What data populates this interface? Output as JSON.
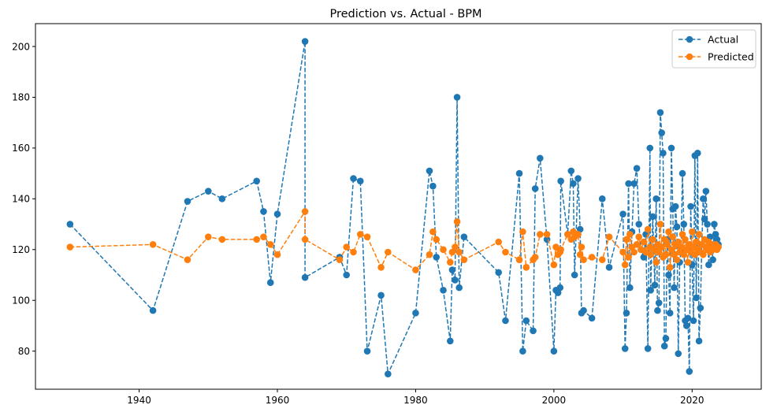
{
  "chart_data": {
    "type": "line",
    "title": "Prediction vs. Actual - BPM",
    "xlabel": "",
    "ylabel": "",
    "xlim": [
      1925,
      2030
    ],
    "ylim": [
      65,
      209
    ],
    "x_ticks": [
      1940,
      1960,
      1980,
      2000,
      2020
    ],
    "y_ticks": [
      80,
      100,
      120,
      140,
      160,
      180,
      200
    ],
    "grid": false,
    "legend_position": "top-right",
    "series": [
      {
        "name": "Actual",
        "color": "#1f77b4",
        "linestyle": "dashed",
        "marker": "circle",
        "points": [
          [
            1930,
            130
          ],
          [
            1942,
            96
          ],
          [
            1947,
            139
          ],
          [
            1950,
            143
          ],
          [
            1952,
            140
          ],
          [
            1957,
            147
          ],
          [
            1958,
            135
          ],
          [
            1959,
            107
          ],
          [
            1960,
            134
          ],
          [
            1964,
            202
          ],
          [
            1964,
            109
          ],
          [
            1969,
            117
          ],
          [
            1970,
            110
          ],
          [
            1971,
            148
          ],
          [
            1972,
            147
          ],
          [
            1973,
            80
          ],
          [
            1975,
            102
          ],
          [
            1976,
            71
          ],
          [
            1980,
            95
          ],
          [
            1982,
            151
          ],
          [
            1982.5,
            145
          ],
          [
            1983,
            117
          ],
          [
            1984,
            104
          ],
          [
            1985,
            84
          ],
          [
            1985.3,
            112
          ],
          [
            1985.7,
            108
          ],
          [
            1986,
            180
          ],
          [
            1986.3,
            105
          ],
          [
            1987,
            125
          ],
          [
            1992,
            111
          ],
          [
            1993,
            92
          ],
          [
            1995,
            150
          ],
          [
            1995.5,
            80
          ],
          [
            1996,
            92
          ],
          [
            1997,
            88
          ],
          [
            1997.3,
            144
          ],
          [
            1998,
            156
          ],
          [
            1999,
            124
          ],
          [
            2000,
            80
          ],
          [
            2000.3,
            104
          ],
          [
            2000.6,
            103
          ],
          [
            2000.9,
            105
          ],
          [
            2001,
            147
          ],
          [
            2002,
            126
          ],
          [
            2002.5,
            151
          ],
          [
            2002.8,
            146
          ],
          [
            2003,
            110
          ],
          [
            2003.5,
            148
          ],
          [
            2003.8,
            128
          ],
          [
            2004,
            95
          ],
          [
            2004.3,
            96
          ],
          [
            2005.5,
            93
          ],
          [
            2007,
            140
          ],
          [
            2008,
            113
          ],
          [
            2010,
            134
          ],
          [
            2010.3,
            81
          ],
          [
            2010.5,
            95
          ],
          [
            2010.8,
            146
          ],
          [
            2011,
            105
          ],
          [
            2011.3,
            127
          ],
          [
            2011.6,
            146
          ],
          [
            2012,
            152
          ],
          [
            2012.3,
            130
          ],
          [
            2012.6,
            120
          ],
          [
            2013,
            117
          ],
          [
            2013.3,
            126
          ],
          [
            2013.6,
            81
          ],
          [
            2013.9,
            160
          ],
          [
            2014,
            104
          ],
          [
            2014.3,
            133
          ],
          [
            2014.6,
            106
          ],
          [
            2014.8,
            140
          ],
          [
            2015,
            96
          ],
          [
            2015.2,
            99
          ],
          [
            2015.4,
            174
          ],
          [
            2015.6,
            166
          ],
          [
            2015.8,
            158
          ],
          [
            2016,
            82
          ],
          [
            2016.2,
            85
          ],
          [
            2016.4,
            124
          ],
          [
            2016.6,
            110
          ],
          [
            2016.8,
            95
          ],
          [
            2017,
            160
          ],
          [
            2017.2,
            136
          ],
          [
            2017.4,
            105
          ],
          [
            2017.6,
            137
          ],
          [
            2017.8,
            129
          ],
          [
            2018,
            79
          ],
          [
            2018.2,
            115
          ],
          [
            2018.4,
            120
          ],
          [
            2018.6,
            150
          ],
          [
            2018.8,
            130
          ],
          [
            2019,
            92
          ],
          [
            2019.2,
            90
          ],
          [
            2019.4,
            93
          ],
          [
            2019.6,
            72
          ],
          [
            2019.8,
            137
          ],
          [
            2020,
            114
          ],
          [
            2020.2,
            92
          ],
          [
            2020.4,
            157
          ],
          [
            2020.6,
            101
          ],
          [
            2020.8,
            158
          ],
          [
            2021,
            84
          ],
          [
            2021.2,
            97
          ],
          [
            2021.4,
            122
          ],
          [
            2021.6,
            140
          ],
          [
            2021.8,
            132
          ],
          [
            2022,
            143
          ],
          [
            2022.2,
            130
          ],
          [
            2022.4,
            114
          ],
          [
            2022.6,
            125
          ],
          [
            2022.8,
            122
          ],
          [
            2023,
            116
          ],
          [
            2023.2,
            130
          ],
          [
            2023.4,
            126
          ],
          [
            2023.6,
            124
          ],
          [
            2023.8,
            122
          ]
        ]
      },
      {
        "name": "Predicted",
        "color": "#ff7f0e",
        "linestyle": "dashed",
        "marker": "circle",
        "points": [
          [
            1930,
            121
          ],
          [
            1942,
            122
          ],
          [
            1947,
            116
          ],
          [
            1950,
            125
          ],
          [
            1952,
            124
          ],
          [
            1957,
            124
          ],
          [
            1958,
            125
          ],
          [
            1959,
            122
          ],
          [
            1960,
            118
          ],
          [
            1964,
            135
          ],
          [
            1964,
            124
          ],
          [
            1969,
            116
          ],
          [
            1970,
            121
          ],
          [
            1971,
            119
          ],
          [
            1972,
            126
          ],
          [
            1973,
            125
          ],
          [
            1975,
            113
          ],
          [
            1976,
            119
          ],
          [
            1980,
            112
          ],
          [
            1982,
            118
          ],
          [
            1982.5,
            127
          ],
          [
            1983,
            124
          ],
          [
            1984,
            120
          ],
          [
            1985,
            115
          ],
          [
            1985.3,
            119
          ],
          [
            1985.7,
            121
          ],
          [
            1986,
            131
          ],
          [
            1986.3,
            119
          ],
          [
            1987,
            116
          ],
          [
            1992,
            123
          ],
          [
            1993,
            119
          ],
          [
            1995,
            116
          ],
          [
            1995.5,
            127
          ],
          [
            1996,
            113
          ],
          [
            1997,
            116
          ],
          [
            1997.3,
            117
          ],
          [
            1998,
            126
          ],
          [
            1999,
            126
          ],
          [
            2000,
            114
          ],
          [
            2000.3,
            121
          ],
          [
            2000.6,
            118
          ],
          [
            2000.9,
            119
          ],
          [
            2001,
            120
          ],
          [
            2002,
            126
          ],
          [
            2002.5,
            124
          ],
          [
            2002.8,
            127
          ],
          [
            2003,
            125
          ],
          [
            2003.5,
            126
          ],
          [
            2003.8,
            118
          ],
          [
            2004,
            121
          ],
          [
            2004.3,
            116
          ],
          [
            2005.5,
            117
          ],
          [
            2007,
            116
          ],
          [
            2008,
            125
          ],
          [
            2010,
            119
          ],
          [
            2010.3,
            114
          ],
          [
            2010.5,
            124
          ],
          [
            2010.8,
            117
          ],
          [
            2011,
            126
          ],
          [
            2011.3,
            121
          ],
          [
            2011.6,
            119
          ],
          [
            2012,
            122
          ],
          [
            2012.3,
            125
          ],
          [
            2012.6,
            120
          ],
          [
            2013,
            123
          ],
          [
            2013.3,
            119
          ],
          [
            2013.6,
            128
          ],
          [
            2013.9,
            121
          ],
          [
            2014,
            118
          ],
          [
            2014.3,
            124
          ],
          [
            2014.6,
            120
          ],
          [
            2014.8,
            115
          ],
          [
            2015,
            122
          ],
          [
            2015.2,
            119
          ],
          [
            2015.4,
            130
          ],
          [
            2015.6,
            121
          ],
          [
            2015.8,
            117
          ],
          [
            2016,
            124
          ],
          [
            2016.2,
            118
          ],
          [
            2016.4,
            122
          ],
          [
            2016.6,
            127
          ],
          [
            2016.8,
            113
          ],
          [
            2017,
            120
          ],
          [
            2017.2,
            125
          ],
          [
            2017.4,
            118
          ],
          [
            2017.6,
            122
          ],
          [
            2017.8,
            116
          ],
          [
            2018,
            123
          ],
          [
            2018.2,
            119
          ],
          [
            2018.4,
            121
          ],
          [
            2018.6,
            126
          ],
          [
            2018.8,
            118
          ],
          [
            2019,
            124
          ],
          [
            2019.2,
            120
          ],
          [
            2019.4,
            115
          ],
          [
            2019.6,
            122
          ],
          [
            2019.8,
            119
          ],
          [
            2020,
            127
          ],
          [
            2020.2,
            121
          ],
          [
            2020.4,
            118
          ],
          [
            2020.6,
            123
          ],
          [
            2020.8,
            120
          ],
          [
            2021,
            126
          ],
          [
            2021.2,
            119
          ],
          [
            2021.4,
            122
          ],
          [
            2021.6,
            118
          ],
          [
            2021.8,
            124
          ],
          [
            2022,
            121
          ],
          [
            2022.2,
            120
          ],
          [
            2022.4,
            123
          ],
          [
            2022.6,
            119
          ],
          [
            2022.8,
            122
          ],
          [
            2023,
            120
          ],
          [
            2023.2,
            121
          ],
          [
            2023.4,
            122
          ],
          [
            2023.6,
            120
          ],
          [
            2023.8,
            121
          ]
        ]
      }
    ]
  }
}
